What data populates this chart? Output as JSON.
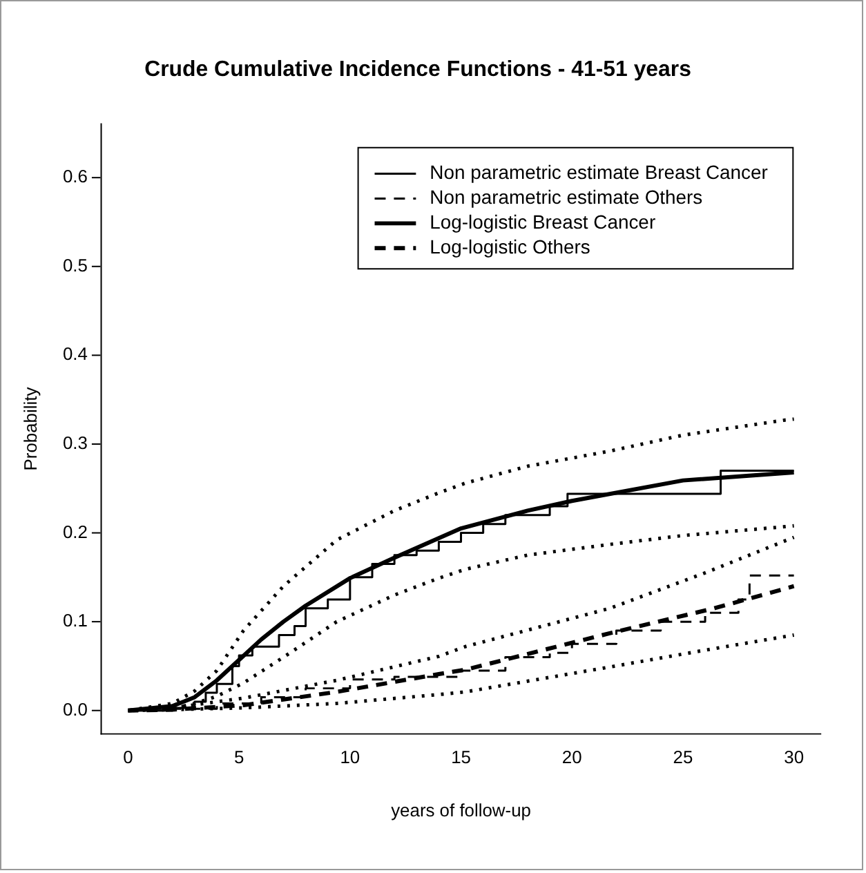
{
  "chart_data": {
    "type": "line",
    "title": "Crude Cumulative Incidence Functions - 41-51 years",
    "xlabel": "years of follow-up",
    "ylabel": "Probability",
    "xlim": [
      -1.2,
      31.2
    ],
    "ylim": [
      -0.026,
      0.66
    ],
    "xticks": [
      0,
      5,
      10,
      15,
      20,
      25,
      30
    ],
    "yticks": [
      {
        "value": 0,
        "label": "0.0"
      },
      {
        "value": 0.1,
        "label": "0.1"
      },
      {
        "value": 0.2,
        "label": "0.2"
      },
      {
        "value": 0.3,
        "label": "0.3"
      },
      {
        "value": 0.4,
        "label": "0.4"
      },
      {
        "value": 0.5,
        "label": "0.5"
      },
      {
        "value": 0.6,
        "label": "0.6"
      }
    ],
    "legend": "top right",
    "grid": false,
    "series": [
      {
        "name": "Non parametric estimate Breast Cancer",
        "type": "step",
        "line_style": "solid",
        "color": "#000000",
        "x": [
          0,
          2,
          3,
          3.5,
          4,
          4.7,
          5,
          5.6,
          6.8,
          7.5,
          8,
          9,
          10,
          11,
          12,
          13,
          14,
          15,
          16,
          17,
          19,
          19.8,
          26.7,
          30
        ],
        "values": [
          0,
          0.003,
          0.01,
          0.02,
          0.03,
          0.05,
          0.062,
          0.072,
          0.085,
          0.095,
          0.115,
          0.125,
          0.15,
          0.165,
          0.175,
          0.18,
          0.19,
          0.2,
          0.21,
          0.22,
          0.23,
          0.244,
          0.27,
          0.27
        ]
      },
      {
        "name": "Non parametric estimate Others",
        "type": "step",
        "line_style": "dashed",
        "color": "#000000",
        "x": [
          0,
          2,
          4,
          6,
          8,
          10,
          12,
          14,
          15,
          17,
          19,
          20,
          22,
          24,
          26,
          27.5,
          28,
          30
        ],
        "values": [
          0,
          0.002,
          0.008,
          0.015,
          0.025,
          0.035,
          0.038,
          0.038,
          0.045,
          0.06,
          0.065,
          0.075,
          0.09,
          0.1,
          0.11,
          0.125,
          0.152,
          0.152
        ]
      },
      {
        "name": "Log-logistic Breast Cancer",
        "line_style": "solid",
        "color": "#000000",
        "x": [
          0,
          2,
          3,
          4,
          5,
          6,
          7,
          8,
          10,
          12,
          15,
          18,
          20,
          25,
          30
        ],
        "values": [
          0,
          0.005,
          0.015,
          0.034,
          0.057,
          0.08,
          0.1,
          0.118,
          0.149,
          0.172,
          0.205,
          0.225,
          0.236,
          0.259,
          0.268
        ]
      },
      {
        "name": "Log-logistic Others",
        "line_style": "dashed",
        "color": "#000000",
        "x": [
          0,
          2,
          5.2,
          9.4,
          14,
          15.2,
          21.7,
          26.4,
          30
        ],
        "values": [
          0,
          0.001,
          0.006,
          0.021,
          0.041,
          0.046,
          0.087,
          0.115,
          0.14
        ]
      },
      {
        "type": "line",
        "line_style": "dotted",
        "color": "#000000",
        "x": [
          0,
          2,
          3,
          4,
          5.2,
          7,
          9.4,
          12,
          14,
          15.2,
          18,
          21.7,
          25,
          29.6,
          30
        ],
        "values": [
          0,
          0.008,
          0.022,
          0.045,
          0.09,
          0.14,
          0.192,
          0.225,
          0.245,
          0.256,
          0.275,
          0.292,
          0.31,
          0.327,
          0.328
        ]
      },
      {
        "type": "line",
        "line_style": "dotted",
        "color": "#000000",
        "x": [
          0,
          2,
          3,
          4,
          5.2,
          7,
          9.4,
          12,
          14,
          15.2,
          18,
          21.7,
          25,
          29.6,
          30
        ],
        "values": [
          0,
          0.002,
          0.008,
          0.016,
          0.031,
          0.06,
          0.1,
          0.13,
          0.149,
          0.159,
          0.175,
          0.187,
          0.197,
          0.207,
          0.208
        ]
      },
      {
        "type": "line",
        "line_style": "dotted",
        "color": "#000000",
        "x": [
          0,
          2,
          5.2,
          9.4,
          14,
          15.2,
          21.7,
          26,
          30
        ],
        "values": [
          0,
          0.003,
          0.014,
          0.034,
          0.061,
          0.072,
          0.115,
          0.155,
          0.195
        ]
      },
      {
        "type": "line",
        "line_style": "dotted",
        "color": "#000000",
        "x": [
          0,
          2,
          5.2,
          9.4,
          14,
          15.2,
          21.7,
          26,
          30
        ],
        "values": [
          0,
          0.001,
          0.003,
          0.008,
          0.018,
          0.021,
          0.049,
          0.068,
          0.085
        ]
      }
    ]
  }
}
